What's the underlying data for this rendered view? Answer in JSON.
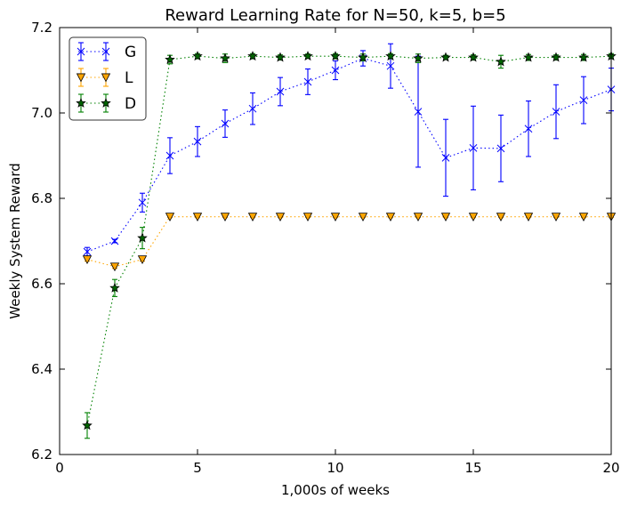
{
  "chart_data": {
    "type": "line",
    "title": "Reward Learning Rate for N=50, k=5, b=5",
    "xlabel": "1,000s of weeks",
    "ylabel": "Weekly System Reward",
    "xlim": [
      0,
      20
    ],
    "ylim": [
      6.2,
      7.2
    ],
    "xticks": [
      0,
      5,
      10,
      15,
      20
    ],
    "yticks": [
      6.2,
      6.4,
      6.6,
      6.8,
      7.0,
      7.2
    ],
    "ytick_labels": [
      "6.2",
      "6.4",
      "6.6",
      "6.8",
      "7.0",
      "7.2"
    ],
    "grid": false,
    "legend_position": "top-left",
    "x": [
      1,
      2,
      3,
      4,
      5,
      6,
      7,
      8,
      9,
      10,
      11,
      12,
      13,
      14,
      15,
      16,
      17,
      18,
      19,
      20
    ],
    "series": [
      {
        "name": "G",
        "color": "#0000ff",
        "marker": "x",
        "values": [
          6.675,
          6.7,
          6.79,
          6.9,
          6.933,
          6.975,
          7.01,
          7.05,
          7.073,
          7.1,
          7.128,
          7.11,
          7.003,
          6.895,
          6.918,
          6.917,
          6.963,
          7.003,
          7.03,
          7.055
        ],
        "errors": [
          0.01,
          0.004,
          0.022,
          0.042,
          0.035,
          0.032,
          0.037,
          0.033,
          0.03,
          0.022,
          0.018,
          0.052,
          0.13,
          0.09,
          0.098,
          0.078,
          0.065,
          0.063,
          0.055,
          0.05
        ]
      },
      {
        "name": "L",
        "color": "#ffa500",
        "marker": "triangle-down",
        "values": [
          6.657,
          6.64,
          6.657,
          6.757,
          6.757,
          6.757,
          6.757,
          6.757,
          6.757,
          6.757,
          6.757,
          6.757,
          6.757,
          6.757,
          6.757,
          6.757,
          6.757,
          6.757,
          6.757,
          6.757
        ],
        "errors": [
          0.004,
          0.004,
          0.004,
          0.002,
          0.002,
          0.002,
          0.002,
          0.002,
          0.002,
          0.002,
          0.002,
          0.002,
          0.002,
          0.002,
          0.002,
          0.002,
          0.002,
          0.002,
          0.002,
          0.002
        ]
      },
      {
        "name": "D",
        "color": "#008000",
        "marker": "star",
        "values": [
          6.268,
          6.59,
          6.707,
          7.125,
          7.133,
          7.128,
          7.133,
          7.13,
          7.133,
          7.133,
          7.13,
          7.133,
          7.128,
          7.13,
          7.13,
          7.12,
          7.13,
          7.13,
          7.13,
          7.133
        ],
        "errors": [
          0.03,
          0.02,
          0.025,
          0.01,
          0.006,
          0.01,
          0.006,
          0.006,
          0.005,
          0.006,
          0.008,
          0.006,
          0.01,
          0.005,
          0.006,
          0.015,
          0.007,
          0.006,
          0.007,
          0.006
        ]
      }
    ]
  }
}
